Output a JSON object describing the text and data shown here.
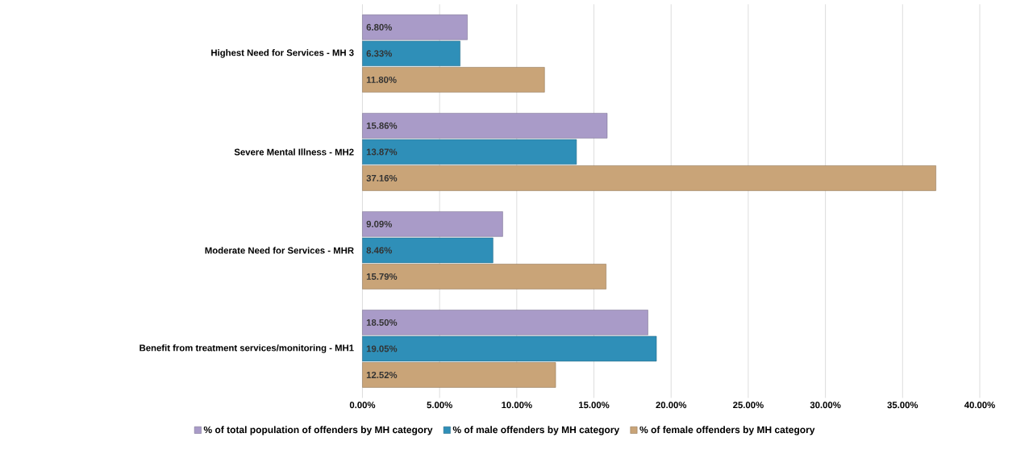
{
  "chart_data": {
    "type": "bar",
    "orientation": "horizontal",
    "categories": [
      "Highest Need for Services - MH 3",
      "Severe Mental Illness - MH2",
      "Moderate Need for Services - MHR",
      "Benefit from treatment services/monitoring - MH1"
    ],
    "series": [
      {
        "name": "% of total population of offenders by MH category",
        "color": "#a99bc8",
        "values": [
          6.8,
          15.86,
          9.09,
          18.5
        ],
        "value_labels": [
          "6.80%",
          "15.86%",
          "9.09%",
          "18.50%"
        ]
      },
      {
        "name": "% of male offenders by MH category",
        "color": "#2f8fb8",
        "values": [
          6.33,
          13.87,
          8.46,
          19.05
        ],
        "value_labels": [
          "6.33%",
          "13.87%",
          "8.46%",
          "19.05%"
        ]
      },
      {
        "name": "% of female offenders by MH category",
        "color": "#c9a478",
        "values": [
          11.8,
          37.16,
          15.79,
          12.52
        ],
        "value_labels": [
          "11.80%",
          "37.16%",
          "15.79%",
          "12.52%"
        ]
      }
    ],
    "xlim": [
      0,
      40
    ],
    "xticks": [
      {
        "value": 0,
        "label": "0.00%"
      },
      {
        "value": 5,
        "label": "5.00%"
      },
      {
        "value": 10,
        "label": "10.00%"
      },
      {
        "value": 15,
        "label": "15.00%"
      },
      {
        "value": 20,
        "label": "20.00%"
      },
      {
        "value": 25,
        "label": "25.00%"
      },
      {
        "value": 30,
        "label": "30.00%"
      },
      {
        "value": 35,
        "label": "35.00%"
      },
      {
        "value": 40,
        "label": "40.00%"
      }
    ],
    "grid": "x",
    "legend": "bottom"
  }
}
